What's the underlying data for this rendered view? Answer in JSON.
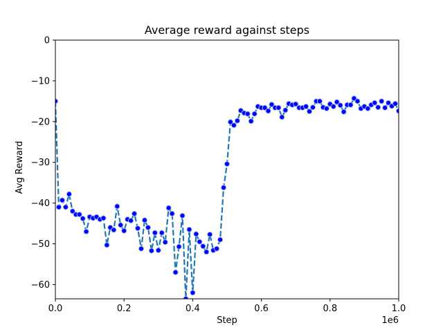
{
  "chart_data": {
    "type": "line",
    "title": "Average reward against steps",
    "xlabel": "Step",
    "ylabel": "Avg Reward",
    "x_offset_label": "1e6",
    "xlim": [
      0,
      1.0
    ],
    "ylim": [
      -63.5,
      0
    ],
    "x_ticks": [
      0.0,
      0.2,
      0.4,
      0.6,
      0.8,
      1.0
    ],
    "x_tick_labels": [
      "0.0",
      "0.2",
      "0.4",
      "0.6",
      "0.8",
      "1.0"
    ],
    "y_ticks": [
      0,
      -10,
      -20,
      -30,
      -40,
      -50,
      -60
    ],
    "y_tick_labels": [
      "0",
      "−10",
      "−20",
      "−30",
      "−40",
      "−50",
      "−60"
    ],
    "grid": false,
    "line_color": "#1f77b4",
    "marker_fill": "#0000ff",
    "marker_edge": "#a9c4e6",
    "series": [
      {
        "x": [
          0.0,
          0.01,
          0.02,
          0.03,
          0.04,
          0.05,
          0.06,
          0.07,
          0.08,
          0.09,
          0.1,
          0.11,
          0.12,
          0.13,
          0.14,
          0.15,
          0.16,
          0.17,
          0.18,
          0.19,
          0.2,
          0.21,
          0.22,
          0.23,
          0.24,
          0.25,
          0.26,
          0.27,
          0.28,
          0.29,
          0.3,
          0.31,
          0.32,
          0.33,
          0.34,
          0.35,
          0.36,
          0.37,
          0.38,
          0.39,
          0.4,
          0.41,
          0.42,
          0.43,
          0.44,
          0.45,
          0.46,
          0.47,
          0.48,
          0.49,
          0.5,
          0.51,
          0.52,
          0.53,
          0.54,
          0.55,
          0.56,
          0.57,
          0.58,
          0.59,
          0.6,
          0.61,
          0.62,
          0.63,
          0.64,
          0.65,
          0.66,
          0.67,
          0.68,
          0.69,
          0.7,
          0.71,
          0.72,
          0.73,
          0.74,
          0.75,
          0.76,
          0.77,
          0.78,
          0.79,
          0.8,
          0.81,
          0.82,
          0.83,
          0.84,
          0.85,
          0.86,
          0.87,
          0.88,
          0.89,
          0.9,
          0.91,
          0.92,
          0.93,
          0.94,
          0.95,
          0.96,
          0.97,
          0.98,
          0.99,
          1.0
        ],
        "y": [
          -15.0,
          -41.0,
          -39.3,
          -41.0,
          -37.8,
          -42.0,
          -42.8,
          -42.8,
          -43.8,
          -47.0,
          -43.4,
          -43.7,
          -43.4,
          -44.0,
          -43.7,
          -50.3,
          -46.0,
          -46.6,
          -40.8,
          -45.4,
          -46.8,
          -44.0,
          -44.3,
          -42.6,
          -46.2,
          -51.2,
          -44.2,
          -46.0,
          -51.7,
          -47.3,
          -51.6,
          -47.3,
          -49.6,
          -41.2,
          -42.6,
          -57.0,
          -50.7,
          -43.1,
          -63.5,
          -46.5,
          -62.0,
          -47.6,
          -49.5,
          -50.6,
          -52.0,
          -47.7,
          -51.6,
          -51.2,
          -49.0,
          -36.2,
          -30.4,
          -20.1,
          -20.9,
          -19.8,
          -17.3,
          -17.9,
          -18.1,
          -19.9,
          -18.1,
          -16.3,
          -16.6,
          -16.6,
          -17.4,
          -15.8,
          -16.6,
          -16.6,
          -18.9,
          -17.2,
          -15.6,
          -15.9,
          -15.7,
          -16.6,
          -16.6,
          -16.3,
          -17.5,
          -16.5,
          -15.0,
          -15.0,
          -16.5,
          -16.8,
          -15.7,
          -16.3,
          -15.2,
          -16.0,
          -17.6,
          -15.9,
          -15.9,
          -14.3,
          -15.0,
          -16.8,
          -16.3,
          -16.8,
          -15.9,
          -15.4,
          -16.5,
          -15.0,
          -16.6,
          -15.4,
          -16.2,
          -15.6,
          -17.4
        ]
      }
    ]
  }
}
